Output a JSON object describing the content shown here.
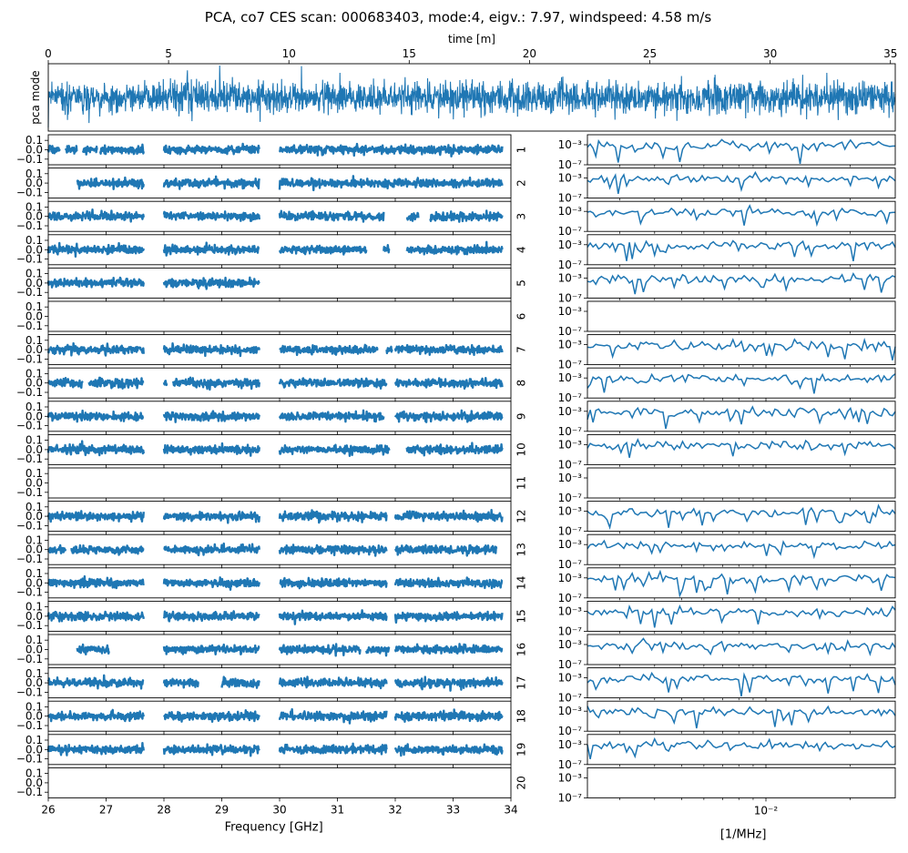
{
  "chart_data": {
    "type": "line",
    "title": "PCA, co7 CES scan: 000683403, mode:4, eigv.: 7.97, windspeed: 4.58 m/s",
    "series_color": "#1f77b4",
    "top_panel": {
      "xlabel": "time [m]",
      "ylabel": "pca mode",
      "xlim": [
        0,
        35.2
      ],
      "xticks": [
        "0",
        "5",
        "10",
        "15",
        "20",
        "25",
        "30",
        "35"
      ],
      "xtick_values": [
        0,
        5,
        10,
        15,
        20,
        25,
        30,
        35
      ],
      "amplitude_note": "dense noise-like time stream centered on 0 with roughly uniform amplitude"
    },
    "feed_panels": {
      "xlabel": "Frequency [GHz]",
      "xlim": [
        26,
        34
      ],
      "xticks": [
        "26",
        "27",
        "28",
        "29",
        "30",
        "31",
        "32",
        "33",
        "34"
      ],
      "xtick_values": [
        26,
        27,
        28,
        29,
        30,
        31,
        32,
        33,
        34
      ],
      "ylim": [
        -0.16,
        0.16
      ],
      "yticks": [
        "0.1",
        "0.0",
        "−0.1"
      ],
      "ytick_values": [
        0.1,
        0.0,
        -0.1
      ],
      "feeds": [
        {
          "label": "1",
          "segments": [
            [
              26.0,
              26.2
            ],
            [
              26.3,
              26.5
            ],
            [
              26.6,
              26.85
            ],
            [
              26.9,
              27.65
            ],
            [
              28.0,
              29.65
            ],
            [
              30.0,
              33.85
            ]
          ]
        },
        {
          "label": "2",
          "segments": [
            [
              26.5,
              27.65
            ],
            [
              28.0,
              29.65
            ],
            [
              30.0,
              33.85
            ]
          ]
        },
        {
          "label": "3",
          "segments": [
            [
              26.0,
              27.65
            ],
            [
              28.0,
              29.65
            ],
            [
              30.0,
              31.8
            ],
            [
              32.2,
              32.4
            ],
            [
              32.6,
              33.85
            ]
          ]
        },
        {
          "label": "4",
          "segments": [
            [
              26.0,
              27.65
            ],
            [
              28.0,
              29.65
            ],
            [
              30.0,
              31.5
            ],
            [
              31.8,
              31.9
            ],
            [
              32.2,
              33.85
            ]
          ]
        },
        {
          "label": "5",
          "segments": [
            [
              26.0,
              27.65
            ],
            [
              28.0,
              29.65
            ]
          ]
        },
        {
          "label": "6",
          "segments": []
        },
        {
          "label": "7",
          "segments": [
            [
              26.0,
              27.65
            ],
            [
              28.0,
              29.65
            ],
            [
              30.0,
              31.7
            ],
            [
              31.85,
              31.95
            ],
            [
              32.0,
              33.85
            ]
          ]
        },
        {
          "label": "8",
          "segments": [
            [
              26.0,
              26.6
            ],
            [
              26.7,
              27.65
            ],
            [
              28.0,
              28.05
            ],
            [
              28.15,
              29.65
            ],
            [
              30.0,
              31.85
            ],
            [
              32.0,
              33.85
            ]
          ]
        },
        {
          "label": "9",
          "segments": [
            [
              26.0,
              27.65
            ],
            [
              28.0,
              29.65
            ],
            [
              30.0,
              31.8
            ],
            [
              32.0,
              33.85
            ]
          ]
        },
        {
          "label": "10",
          "segments": [
            [
              26.0,
              27.65
            ],
            [
              28.0,
              29.65
            ],
            [
              30.0,
              31.9
            ],
            [
              32.2,
              33.85
            ]
          ]
        },
        {
          "label": "11",
          "segments": []
        },
        {
          "label": "12",
          "segments": [
            [
              26.0,
              27.65
            ],
            [
              28.0,
              29.65
            ],
            [
              30.0,
              31.85
            ],
            [
              32.0,
              33.85
            ]
          ]
        },
        {
          "label": "13",
          "segments": [
            [
              26.0,
              26.3
            ],
            [
              26.4,
              27.65
            ],
            [
              28.0,
              29.65
            ],
            [
              30.0,
              31.85
            ],
            [
              32.0,
              33.75
            ]
          ]
        },
        {
          "label": "14",
          "segments": [
            [
              26.0,
              27.65
            ],
            [
              28.0,
              29.65
            ],
            [
              30.0,
              31.85
            ],
            [
              32.0,
              33.85
            ]
          ]
        },
        {
          "label": "15",
          "segments": [
            [
              26.0,
              27.65
            ],
            [
              28.0,
              29.65
            ],
            [
              30.0,
              31.85
            ],
            [
              32.0,
              33.85
            ]
          ]
        },
        {
          "label": "16",
          "segments": [
            [
              26.5,
              27.05
            ],
            [
              28.0,
              29.65
            ],
            [
              30.0,
              31.4
            ],
            [
              31.5,
              31.9
            ],
            [
              32.0,
              33.85
            ]
          ]
        },
        {
          "label": "17",
          "segments": [
            [
              26.0,
              27.65
            ],
            [
              28.0,
              28.6
            ],
            [
              29.0,
              29.65
            ],
            [
              30.0,
              31.85
            ],
            [
              32.0,
              33.85
            ]
          ]
        },
        {
          "label": "18",
          "segments": [
            [
              26.0,
              27.65
            ],
            [
              28.0,
              29.65
            ],
            [
              30.0,
              31.85
            ],
            [
              32.0,
              33.85
            ]
          ]
        },
        {
          "label": "19",
          "segments": [
            [
              26.0,
              27.65
            ],
            [
              28.0,
              29.65
            ],
            [
              30.0,
              31.85
            ],
            [
              32.0,
              33.85
            ]
          ]
        },
        {
          "label": "20",
          "segments": []
        }
      ]
    },
    "spectrum_panels": {
      "xlabel": "[1/MHz]",
      "xscale": "log",
      "xlim": [
        0.0023,
        0.029
      ],
      "xtick_label": "10⁻²",
      "xtick_value": 0.01,
      "yscale": "log",
      "ylim": [
        1e-07,
        0.1
      ],
      "yticks": [
        "10⁻³",
        "10⁻⁷"
      ],
      "ytick_values": [
        0.001,
        1e-07
      ],
      "empty_feeds": [
        "6",
        "11",
        "20"
      ]
    }
  }
}
